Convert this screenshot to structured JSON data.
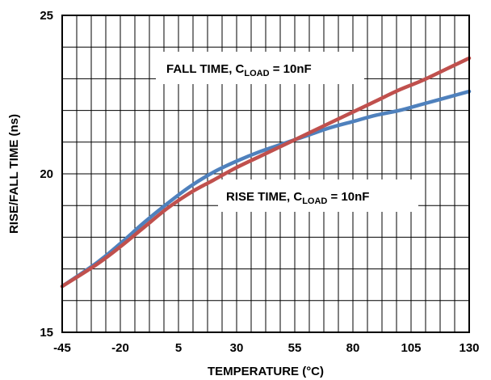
{
  "chart_data": {
    "type": "line",
    "title": "",
    "xlabel": "TEMPERATURE (°C)",
    "ylabel": "RISE/FALL TIME (ns)",
    "xlim": [
      -45,
      130
    ],
    "ylim": [
      15,
      25
    ],
    "x_ticks": [
      "-45",
      "-20",
      "5",
      "30",
      "55",
      "80",
      "105",
      "130"
    ],
    "y_ticks": [
      "15",
      "20",
      "25"
    ],
    "grid": true,
    "series": [
      {
        "name": "FALL TIME, CLOAD = 10nF",
        "color": "#c0504d",
        "x": [
          -45,
          -30,
          -20,
          -10,
          0,
          10,
          20,
          30,
          40,
          50,
          60,
          70,
          80,
          90,
          100,
          110,
          120,
          130
        ],
        "y": [
          16.45,
          17.15,
          17.7,
          18.3,
          18.9,
          19.4,
          19.8,
          20.2,
          20.55,
          20.9,
          21.25,
          21.6,
          21.95,
          22.3,
          22.65,
          22.95,
          23.3,
          23.65
        ]
      },
      {
        "name": "RISE TIME, CLOAD = 10nF",
        "color": "#4f81bd",
        "x": [
          -45,
          -30,
          -20,
          -10,
          0,
          10,
          20,
          30,
          40,
          50,
          60,
          70,
          80,
          90,
          100,
          110,
          120,
          130
        ],
        "y": [
          16.45,
          17.2,
          17.8,
          18.45,
          19.05,
          19.6,
          20.05,
          20.4,
          20.7,
          20.95,
          21.2,
          21.45,
          21.65,
          21.85,
          22.0,
          22.2,
          22.4,
          22.6
        ]
      }
    ],
    "annotations": [
      {
        "main": "FALL TIME, C",
        "sub": "LOAD",
        "tail": " = 10nF"
      },
      {
        "main": "RISE TIME, C",
        "sub": "LOAD",
        "tail": " = 10nF"
      }
    ]
  }
}
